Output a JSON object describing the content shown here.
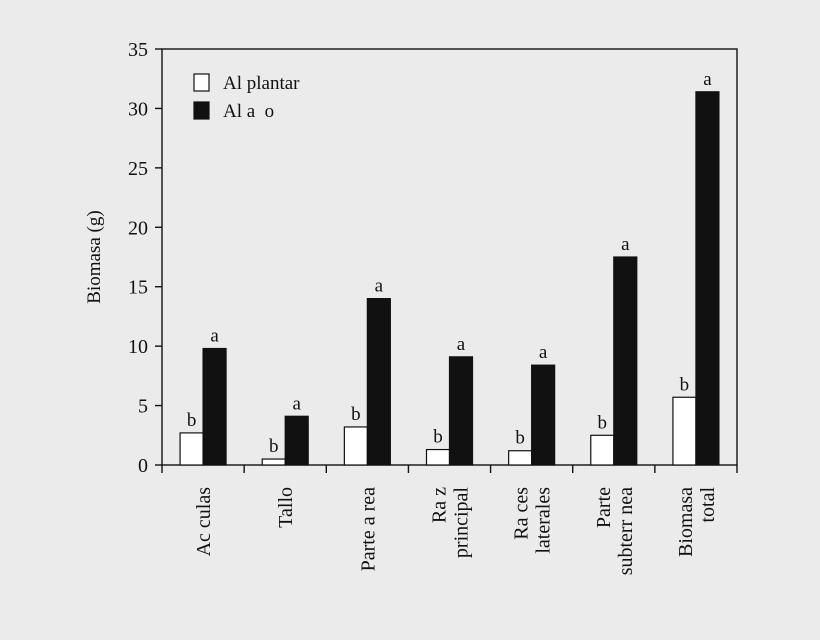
{
  "chart_data": {
    "type": "bar",
    "categories": [
      [
        "Ac culas"
      ],
      [
        "Tallo"
      ],
      [
        "Parte a rea"
      ],
      [
        "Ra z",
        "principal"
      ],
      [
        "Ra ces",
        "laterales"
      ],
      [
        "Parte",
        "subterr nea"
      ],
      [
        "Biomasa",
        "total"
      ]
    ],
    "series": [
      {
        "name": "Al plantar",
        "fill": "#ffffff",
        "values": [
          2.7,
          0.5,
          3.2,
          1.3,
          1.2,
          2.5,
          5.7
        ],
        "labels": [
          "b",
          "b",
          "b",
          "b",
          "b",
          "b",
          "b"
        ]
      },
      {
        "name": "Al a  o",
        "fill": "#111111",
        "values": [
          9.8,
          4.1,
          14.0,
          9.1,
          8.4,
          17.5,
          31.4
        ],
        "labels": [
          "a",
          "a",
          "a",
          "a",
          "a",
          "a",
          "a"
        ]
      }
    ],
    "ylabel": "Biomasa (g)",
    "ylim": [
      0,
      35
    ],
    "yticks": [
      0,
      5,
      10,
      15,
      20,
      25,
      30,
      35
    ],
    "legend_position": "top-left",
    "grid": false
  }
}
